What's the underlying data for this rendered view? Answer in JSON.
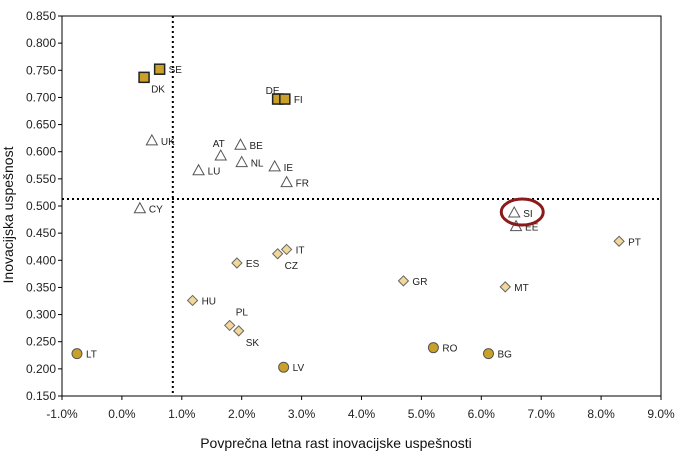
{
  "chart_data": {
    "type": "scatter",
    "xlabel": "Povprečna letna rast inovacijske uspešnosti",
    "ylabel": "Inovacijska uspešnost",
    "xlim": [
      -0.01,
      0.09
    ],
    "ylim": [
      0.15,
      0.85
    ],
    "x_ticks": [
      -0.01,
      0.0,
      0.01,
      0.02,
      0.03,
      0.04,
      0.05,
      0.06,
      0.07,
      0.08,
      0.09
    ],
    "x_tick_labels": [
      "-1.0%",
      "0.0%",
      "1.0%",
      "2.0%",
      "3.0%",
      "4.0%",
      "5.0%",
      "6.0%",
      "7.0%",
      "8.0%",
      "9.0%"
    ],
    "y_ticks": [
      0.15,
      0.2,
      0.25,
      0.3,
      0.35,
      0.4,
      0.45,
      0.5,
      0.55,
      0.6,
      0.65,
      0.7,
      0.75,
      0.8,
      0.85
    ],
    "y_tick_labels": [
      "0.150",
      "0.200",
      "0.250",
      "0.300",
      "0.350",
      "0.400",
      "0.450",
      "0.500",
      "0.550",
      "0.600",
      "0.650",
      "0.700",
      "0.750",
      "0.800",
      "0.850"
    ],
    "reference_lines": {
      "x": 0.0085,
      "y": 0.513
    },
    "highlight": {
      "label": "SI",
      "color": "#8b1a1a"
    },
    "marker_styles": {
      "square": {
        "fill": "#c8a02a",
        "stroke": "#222222"
      },
      "triangle": {
        "fill": "#ffffff",
        "stroke": "#555555"
      },
      "diamond": {
        "fill": "#f2d79a",
        "stroke": "#666666"
      },
      "circle": {
        "fill": "#c8a02a",
        "stroke": "#555555"
      }
    },
    "points": [
      {
        "label": "SE",
        "x": 0.0063,
        "y": 0.752,
        "marker": "square",
        "label_pos": "right"
      },
      {
        "label": "DK",
        "x": 0.0037,
        "y": 0.737,
        "marker": "square",
        "label_pos": "below-right"
      },
      {
        "label": "DE",
        "x": 0.026,
        "y": 0.697,
        "marker": "square",
        "label_pos": "above-left"
      },
      {
        "label": "FI",
        "x": 0.0272,
        "y": 0.697,
        "marker": "square",
        "label_pos": "right"
      },
      {
        "label": "UK",
        "x": 0.005,
        "y": 0.62,
        "marker": "triangle",
        "label_pos": "right"
      },
      {
        "label": "AT",
        "x": 0.0165,
        "y": 0.592,
        "marker": "triangle",
        "label_pos": "above"
      },
      {
        "label": "BE",
        "x": 0.0198,
        "y": 0.612,
        "marker": "triangle",
        "label_pos": "right"
      },
      {
        "label": "LU",
        "x": 0.0128,
        "y": 0.565,
        "marker": "triangle",
        "label_pos": "right"
      },
      {
        "label": "NL",
        "x": 0.02,
        "y": 0.58,
        "marker": "triangle",
        "label_pos": "right"
      },
      {
        "label": "IE",
        "x": 0.0255,
        "y": 0.572,
        "marker": "triangle",
        "label_pos": "right"
      },
      {
        "label": "FR",
        "x": 0.0275,
        "y": 0.543,
        "marker": "triangle",
        "label_pos": "right"
      },
      {
        "label": "CY",
        "x": 0.003,
        "y": 0.495,
        "marker": "triangle",
        "label_pos": "right"
      },
      {
        "label": "SI",
        "x": 0.0655,
        "y": 0.487,
        "marker": "triangle",
        "label_pos": "right"
      },
      {
        "label": "EE",
        "x": 0.0658,
        "y": 0.462,
        "marker": "triangle",
        "label_pos": "right"
      },
      {
        "label": "PT",
        "x": 0.083,
        "y": 0.435,
        "marker": "diamond",
        "label_pos": "right"
      },
      {
        "label": "IT",
        "x": 0.0275,
        "y": 0.42,
        "marker": "diamond",
        "label_pos": "right"
      },
      {
        "label": "CZ",
        "x": 0.026,
        "y": 0.412,
        "marker": "diamond",
        "label_pos": "below-right"
      },
      {
        "label": "ES",
        "x": 0.0192,
        "y": 0.395,
        "marker": "diamond",
        "label_pos": "right"
      },
      {
        "label": "GR",
        "x": 0.047,
        "y": 0.362,
        "marker": "diamond",
        "label_pos": "right"
      },
      {
        "label": "MT",
        "x": 0.064,
        "y": 0.351,
        "marker": "diamond",
        "label_pos": "right"
      },
      {
        "label": "HU",
        "x": 0.0118,
        "y": 0.326,
        "marker": "diamond",
        "label_pos": "right"
      },
      {
        "label": "PL",
        "x": 0.018,
        "y": 0.28,
        "marker": "diamond",
        "label_pos": "above-right"
      },
      {
        "label": "SK",
        "x": 0.0195,
        "y": 0.27,
        "marker": "diamond",
        "label_pos": "below-right"
      },
      {
        "label": "LT",
        "x": -0.0075,
        "y": 0.228,
        "marker": "circle",
        "label_pos": "right"
      },
      {
        "label": "RO",
        "x": 0.052,
        "y": 0.239,
        "marker": "circle",
        "label_pos": "right"
      },
      {
        "label": "BG",
        "x": 0.0612,
        "y": 0.228,
        "marker": "circle",
        "label_pos": "right"
      },
      {
        "label": "LV",
        "x": 0.027,
        "y": 0.203,
        "marker": "circle",
        "label_pos": "right"
      }
    ]
  }
}
